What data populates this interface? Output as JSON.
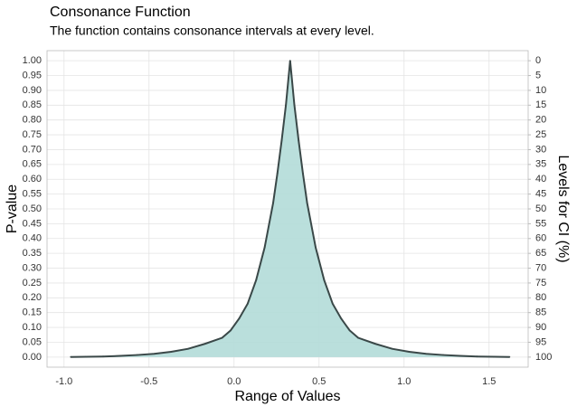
{
  "chart_data": {
    "type": "area",
    "title": "Consonance Function",
    "subtitle": "The function contains consonance intervals at every level.",
    "x_label": "Range of Values",
    "y_label": "P-value",
    "y2_label": "Levels for CI (%)",
    "x": [
      -0.96,
      -0.87,
      -0.77,
      -0.67,
      -0.57,
      -0.47,
      -0.37,
      -0.27,
      -0.17,
      -0.07,
      -0.02,
      0.03,
      0.08,
      0.13,
      0.18,
      0.23,
      0.255,
      0.28,
      0.305,
      0.33,
      0.355,
      0.38,
      0.405,
      0.43,
      0.48,
      0.53,
      0.58,
      0.63,
      0.68,
      0.73,
      0.83,
      0.93,
      1.03,
      1.13,
      1.23,
      1.33,
      1.43,
      1.53,
      1.62
    ],
    "series": [
      {
        "color": "#3a4848",
        "fill": "#b3dcd8",
        "values": [
          0.0005,
          0.001,
          0.002,
          0.004,
          0.007,
          0.011,
          0.018,
          0.028,
          0.045,
          0.065,
          0.09,
          0.13,
          0.18,
          0.26,
          0.37,
          0.52,
          0.62,
          0.73,
          0.85,
          1,
          0.85,
          0.73,
          0.62,
          0.52,
          0.37,
          0.26,
          0.18,
          0.13,
          0.09,
          0.065,
          0.045,
          0.028,
          0.018,
          0.011,
          0.007,
          0.004,
          0.002,
          0.001,
          0.0005
        ]
      }
    ],
    "xlim": [
      -1.1,
      1.73
    ],
    "xticks": [
      {
        "value": -1,
        "label": "-1.0"
      },
      {
        "value": -0.5,
        "label": "-0.5"
      },
      {
        "value": 0,
        "label": "0.0"
      },
      {
        "value": 0.5,
        "label": "0.5"
      },
      {
        "value": 1,
        "label": "1.0"
      },
      {
        "value": 1.5,
        "label": "1.5"
      }
    ],
    "ylim": [
      -0.034,
      1.034
    ],
    "yticks": [
      {
        "value": 0,
        "label": "0.00"
      },
      {
        "value": 0.05,
        "label": "0.05"
      },
      {
        "value": 0.1,
        "label": "0.10"
      },
      {
        "value": 0.15,
        "label": "0.15"
      },
      {
        "value": 0.2,
        "label": "0.20"
      },
      {
        "value": 0.25,
        "label": "0.25"
      },
      {
        "value": 0.3,
        "label": "0.30"
      },
      {
        "value": 0.35,
        "label": "0.35"
      },
      {
        "value": 0.4,
        "label": "0.40"
      },
      {
        "value": 0.45,
        "label": "0.45"
      },
      {
        "value": 0.5,
        "label": "0.50"
      },
      {
        "value": 0.55,
        "label": "0.55"
      },
      {
        "value": 0.6,
        "label": "0.60"
      },
      {
        "value": 0.65,
        "label": "0.65"
      },
      {
        "value": 0.7,
        "label": "0.70"
      },
      {
        "value": 0.75,
        "label": "0.75"
      },
      {
        "value": 0.8,
        "label": "0.80"
      },
      {
        "value": 0.85,
        "label": "0.85"
      },
      {
        "value": 0.9,
        "label": "0.90"
      },
      {
        "value": 0.95,
        "label": "0.95"
      },
      {
        "value": 1,
        "label": "1.00"
      }
    ],
    "y2lim": [
      103.4,
      -3.4
    ],
    "y2ticks": [
      0,
      5,
      10,
      15,
      20,
      25,
      30,
      35,
      40,
      45,
      50,
      55,
      60,
      65,
      70,
      75,
      80,
      85,
      90,
      95,
      100
    ],
    "grid": true
  }
}
